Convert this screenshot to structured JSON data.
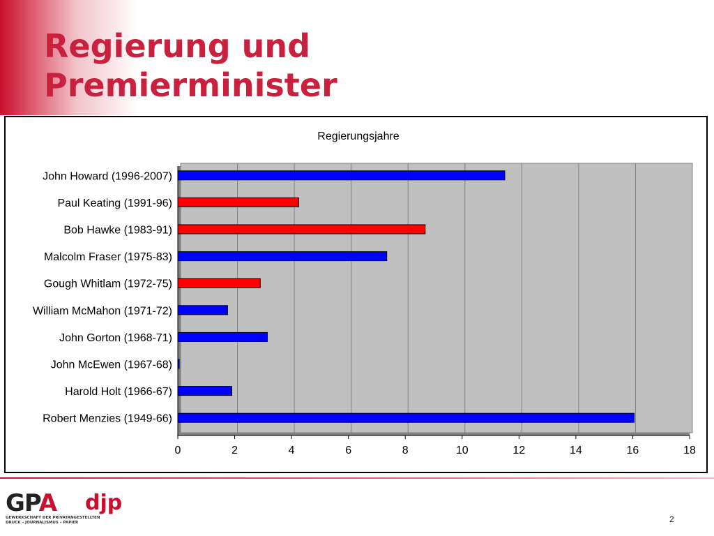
{
  "slide": {
    "title_line1": "Regierung und",
    "title_line2": "Premierminister",
    "page_number": "2"
  },
  "logo": {
    "gp": "GP",
    "a": "A",
    "djp": "djp",
    "sub_line1": "GEWERKSCHAFT DER PRIVATANGESTELLTEN",
    "sub_line2": "DRUCK – JOURNALISMUS – PAPIER"
  },
  "colors": {
    "title": "#c8203d",
    "plot_bg": "#c0c0c0",
    "bar_blue": "#0000ff",
    "bar_red": "#ff0000"
  },
  "chart_data": {
    "type": "bar",
    "orientation": "horizontal",
    "title": "Regierungsjahre",
    "xlabel": "",
    "ylabel": "",
    "xlim": [
      0,
      18
    ],
    "x_ticks": [
      0,
      2,
      4,
      6,
      8,
      10,
      12,
      14,
      16,
      18
    ],
    "grid": true,
    "legend": "none",
    "categories": [
      "John Howard (1996-2007)",
      "Paul Keating (1991-96)",
      "Bob Hawke (1983-91)",
      "Malcolm Fraser (1975-83)",
      "Gough Whitlam (1972-75)",
      "William McMahon (1971-72)",
      "John Gorton (1968-71)",
      "John McEwen (1967-68)",
      "Harold Holt (1966-67)",
      "Robert Menzies (1949-66)"
    ],
    "values": [
      11.5,
      4.25,
      8.7,
      7.35,
      2.9,
      1.75,
      3.15,
      0.05,
      1.9,
      16.05
    ],
    "bar_colors": [
      "#0000ff",
      "#ff0000",
      "#ff0000",
      "#0000ff",
      "#ff0000",
      "#0000ff",
      "#0000ff",
      "#0000ff",
      "#0000ff",
      "#0000ff"
    ]
  }
}
